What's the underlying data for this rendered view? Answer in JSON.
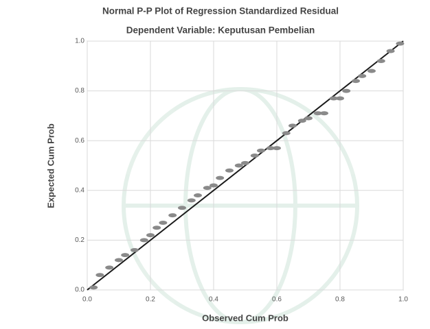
{
  "chart_data": {
    "type": "scatter",
    "title": "Normal P-P Plot of Regression Standardized Residual",
    "subtitle": "Dependent Variable: Keputusan Pembelian",
    "x_label": "Observed Cum Prob",
    "y_label": "Expected Cum Prob",
    "color": "#8a8a8a",
    "line_color": "#1a1a1a",
    "grid": true,
    "xlim": [
      0,
      1
    ],
    "ylim": [
      0,
      1
    ],
    "xticks": [
      {
        "value": 0,
        "label": "0.0"
      },
      {
        "value": 0.2,
        "label": "0.2"
      },
      {
        "value": 0.4,
        "label": "0.4"
      },
      {
        "value": 0.6,
        "label": "0.6"
      },
      {
        "value": 0.8,
        "label": "0.8"
      },
      {
        "value": 1,
        "label": "1.0"
      }
    ],
    "yticks": [
      {
        "value": 0,
        "label": "0.0"
      },
      {
        "value": 0.2,
        "label": "0.2"
      },
      {
        "value": 0.4,
        "label": "0.4"
      },
      {
        "value": 0.6,
        "label": "0.6"
      },
      {
        "value": 0.8,
        "label": "0.8"
      },
      {
        "value": 1,
        "label": "1.0"
      }
    ],
    "x": [
      0.02,
      0.04,
      0.07,
      0.1,
      0.12,
      0.15,
      0.18,
      0.2,
      0.22,
      0.24,
      0.27,
      0.3,
      0.33,
      0.35,
      0.38,
      0.4,
      0.42,
      0.45,
      0.48,
      0.5,
      0.53,
      0.55,
      0.58,
      0.6,
      0.63,
      0.65,
      0.68,
      0.7,
      0.73,
      0.75,
      0.78,
      0.8,
      0.82,
      0.85,
      0.87,
      0.9,
      0.93,
      0.96,
      0.99
    ],
    "values": [
      0.01,
      0.06,
      0.09,
      0.12,
      0.14,
      0.16,
      0.2,
      0.22,
      0.25,
      0.27,
      0.3,
      0.33,
      0.36,
      0.38,
      0.41,
      0.42,
      0.45,
      0.48,
      0.5,
      0.51,
      0.54,
      0.56,
      0.57,
      0.57,
      0.63,
      0.66,
      0.68,
      0.69,
      0.71,
      0.71,
      0.77,
      0.77,
      0.8,
      0.84,
      0.86,
      0.88,
      0.92,
      0.96,
      0.99
    ]
  }
}
